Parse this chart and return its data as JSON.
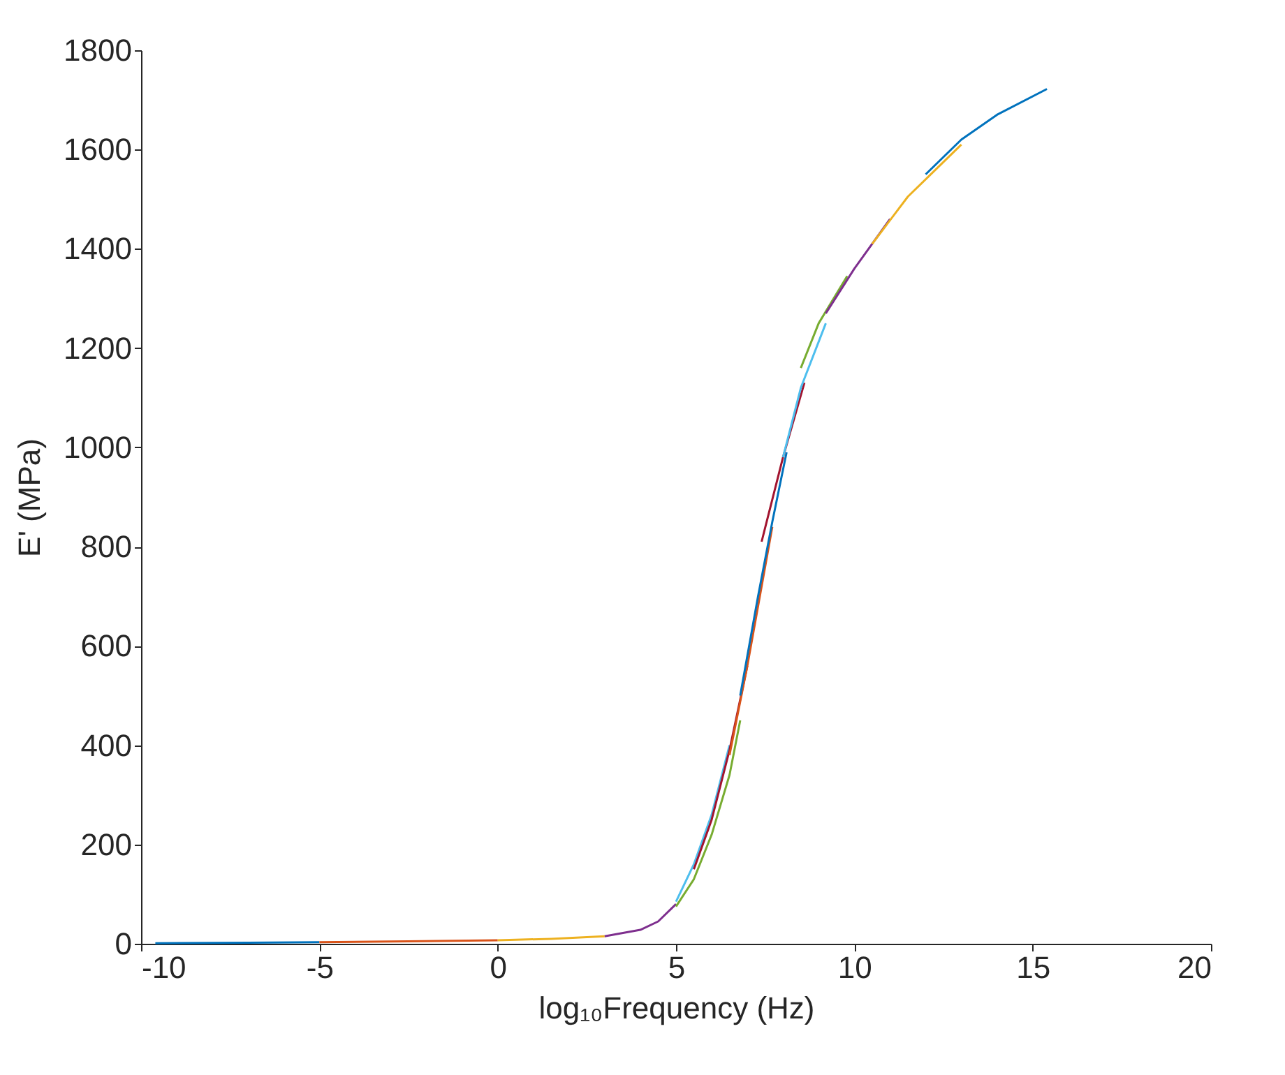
{
  "chart_data": {
    "type": "line",
    "xlabel": "log₁₀Frequency (Hz)",
    "ylabel": "E' (MPa)",
    "xlim": [
      -10,
      20
    ],
    "xticks": [
      -10,
      -5,
      0,
      5,
      10,
      15,
      20
    ],
    "ylim": [
      0,
      1800
    ],
    "yticks": [
      0,
      200,
      400,
      600,
      800,
      1000,
      1200,
      1400,
      1600,
      1800
    ],
    "grid": false,
    "legend": false,
    "marker": "none",
    "line_style": "solid",
    "series": [
      {
        "color": "#0072bd",
        "x": [
          -9.6,
          -7,
          -5
        ],
        "values": [
          1,
          2,
          3
        ]
      },
      {
        "color": "#d95319",
        "x": [
          -5,
          -2.5,
          0
        ],
        "values": [
          3,
          5,
          7
        ]
      },
      {
        "color": "#edb120",
        "x": [
          0,
          1.5,
          3
        ],
        "values": [
          7,
          10,
          15
        ]
      },
      {
        "color": "#7e2f8e",
        "x": [
          3,
          4,
          4.5,
          5
        ],
        "values": [
          15,
          28,
          45,
          80
        ]
      },
      {
        "color": "#77ac30",
        "x": [
          5,
          5.5,
          6,
          6.5,
          6.8
        ],
        "values": [
          75,
          130,
          220,
          340,
          450
        ]
      },
      {
        "color": "#4dbeee",
        "x": [
          5,
          5.5,
          6,
          6.5
        ],
        "values": [
          85,
          160,
          260,
          400
        ]
      },
      {
        "color": "#a2142f",
        "x": [
          5.5,
          6,
          6.5,
          7
        ],
        "values": [
          150,
          250,
          390,
          560
        ]
      },
      {
        "color": "#d95319",
        "x": [
          6.5,
          7,
          7.3,
          7.7
        ],
        "values": [
          380,
          560,
          680,
          840
        ]
      },
      {
        "color": "#0072bd",
        "x": [
          6.8,
          7.3,
          7.7,
          8.1
        ],
        "values": [
          500,
          700,
          850,
          990
        ]
      },
      {
        "color": "#a2142f",
        "x": [
          7.4,
          8,
          8.6
        ],
        "values": [
          810,
          980,
          1130
        ]
      },
      {
        "color": "#4dbeee",
        "x": [
          8,
          8.5,
          9.2
        ],
        "values": [
          980,
          1120,
          1250
        ]
      },
      {
        "color": "#77ac30",
        "x": [
          8.5,
          9,
          9.8
        ],
        "values": [
          1160,
          1250,
          1345
        ]
      },
      {
        "color": "#7e2f8e",
        "x": [
          9.2,
          10,
          11
        ],
        "values": [
          1270,
          1360,
          1460
        ]
      },
      {
        "color": "#edb120",
        "x": [
          10.5,
          11.5,
          13
        ],
        "values": [
          1410,
          1505,
          1610
        ]
      },
      {
        "color": "#0072bd",
        "x": [
          12,
          13,
          14,
          15.4
        ],
        "values": [
          1550,
          1620,
          1670,
          1722
        ]
      }
    ]
  }
}
